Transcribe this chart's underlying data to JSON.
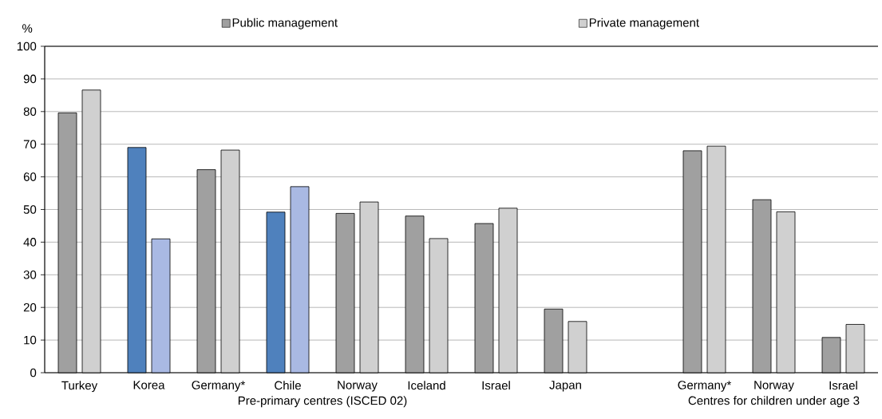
{
  "chart_data": {
    "type": "bar",
    "ylabel": "%",
    "categories": [
      "Turkey",
      "Korea",
      "Germany*",
      "Chile",
      "Norway",
      "Iceland",
      "Israel",
      "Japan",
      null,
      "Germany*",
      "Norway",
      "Israel"
    ],
    "series": [
      {
        "name": "Public management",
        "color": "#a0a0a0",
        "colors": [
          "#a0a0a0",
          "#4f81bd",
          "#a0a0a0",
          "#4f81bd",
          "#a0a0a0",
          "#a0a0a0",
          "#a0a0a0",
          "#a0a0a0",
          "#a0a0a0",
          "#a0a0a0",
          "#a0a0a0",
          "#a0a0a0"
        ],
        "values": [
          79.6,
          69,
          62.2,
          49.2,
          48.8,
          48,
          45.7,
          19.5,
          null,
          68,
          53,
          10.8
        ]
      },
      {
        "name": "Private management",
        "color": "#d0d0d0",
        "colors": [
          "#d0d0d0",
          "#a9b9e3",
          "#d0d0d0",
          "#a9b9e3",
          "#d0d0d0",
          "#d0d0d0",
          "#d0d0d0",
          "#d0d0d0",
          "#d0d0d0",
          "#d0d0d0",
          "#d0d0d0",
          "#d0d0d0"
        ],
        "values": [
          86.6,
          41,
          68.2,
          57,
          52.3,
          41.1,
          50.4,
          15.7,
          null,
          69.4,
          49.3,
          14.8
        ]
      }
    ],
    "ylim": [
      0,
      100
    ],
    "yticks": [
      0,
      10,
      20,
      30,
      40,
      50,
      60,
      70,
      80,
      90,
      100
    ],
    "grid": "y",
    "legend": "top",
    "annotations": [
      "Pre-primary centres (ISCED 02)",
      "Centres for children under age 3"
    ]
  }
}
